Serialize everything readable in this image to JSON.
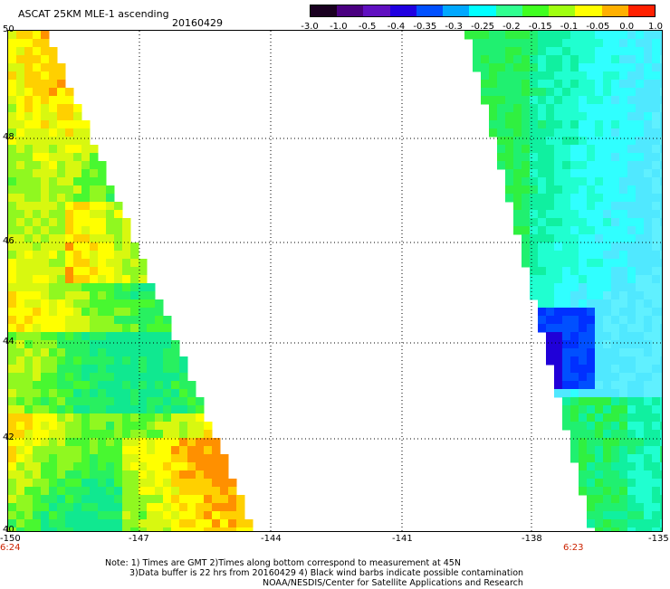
{
  "header": {
    "title": "ASCAT 25KM MLE-1 ascending",
    "date": "20160429"
  },
  "colorbar": {
    "labels": [
      "-3.0",
      "-1.0",
      "-0.5",
      "-0.4",
      "-0.35",
      "-0.3",
      "-0.25",
      "-0.2",
      "-0.15",
      "-0.1",
      "-0.05",
      "0.0",
      "1.0"
    ],
    "colors": [
      "#1a0020",
      "#4a0080",
      "#6010c0",
      "#2000e0",
      "#0050ff",
      "#00a8ff",
      "#00ffff",
      "#30ff90",
      "#40ff20",
      "#a0ff10",
      "#ffff00",
      "#ffb000",
      "#ff2000"
    ]
  },
  "axes": {
    "lat_labels": [
      "50",
      "48",
      "46",
      "44",
      "42",
      "40"
    ],
    "lon_labels": [
      "-150",
      "-147",
      "-144",
      "-141",
      "-138",
      "-135"
    ]
  },
  "time_labels": {
    "left": "6:24",
    "right": "6:23"
  },
  "notes": {
    "line1": "Note: 1) Times are GMT 2)Times along bottom correspond to measurement at 45N",
    "line2": "3)Data buffer is 22 hrs from 20160429 4) Black wind barbs indicate possible contamination",
    "line3": "NOAA/NESDIS/Center for Satellite Applications and Research"
  },
  "colors": {
    "blue": "#0000ff",
    "green": "#00ff00",
    "cyan": "#00ffff",
    "yellow": "#ffff00",
    "orange": "#ff8000"
  }
}
